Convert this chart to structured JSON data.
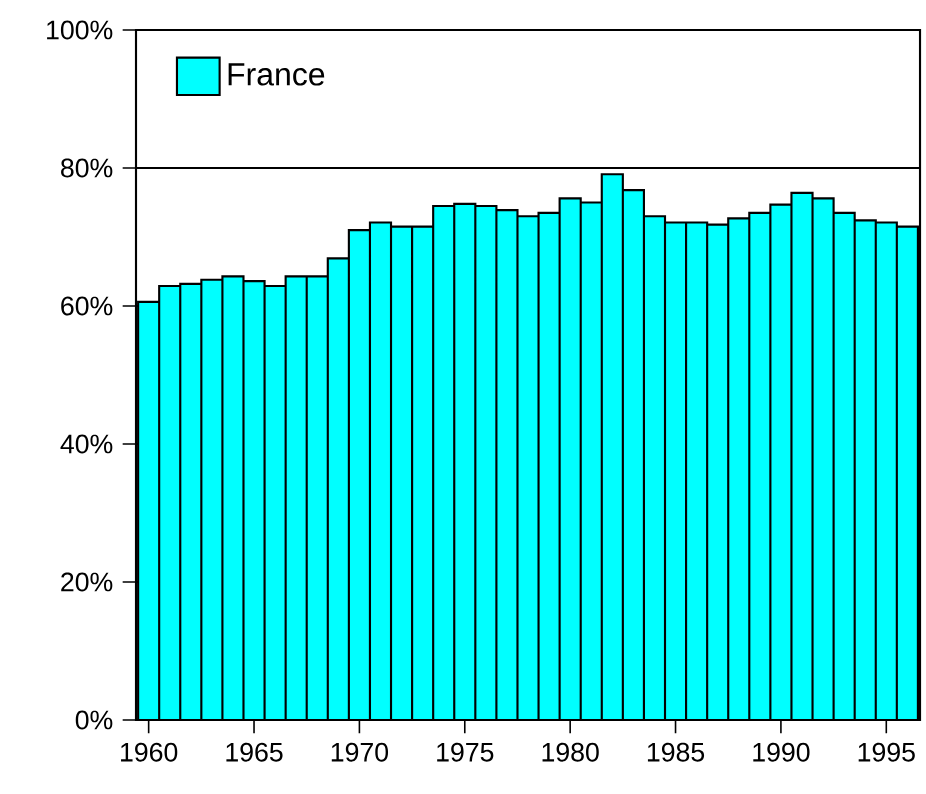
{
  "chart_data": {
    "type": "bar",
    "x": [
      1960,
      1961,
      1962,
      1963,
      1964,
      1965,
      1966,
      1967,
      1968,
      1969,
      1970,
      1971,
      1972,
      1973,
      1974,
      1975,
      1976,
      1977,
      1978,
      1979,
      1980,
      1981,
      1982,
      1983,
      1984,
      1985,
      1986,
      1987,
      1988,
      1989,
      1990,
      1991,
      1992,
      1993,
      1994,
      1995,
      1996
    ],
    "series": [
      {
        "name": "France",
        "color": "#00ffff",
        "values": [
          60.6,
          62.9,
          63.2,
          63.8,
          64.3,
          63.6,
          62.9,
          64.3,
          64.3,
          66.9,
          71.0,
          72.1,
          71.5,
          71.5,
          74.5,
          74.8,
          74.5,
          73.9,
          73.0,
          73.5,
          75.6,
          75.0,
          79.1,
          76.8,
          73.0,
          72.1,
          72.1,
          71.8,
          72.7,
          73.5,
          74.7,
          76.4,
          75.6,
          73.5,
          72.4,
          72.1,
          71.5
        ]
      }
    ],
    "xlim": [
      1959.4,
      1996.6
    ],
    "xticks": [
      1960,
      1965,
      1970,
      1975,
      1980,
      1985,
      1990,
      1995
    ],
    "ylim": [
      0,
      100
    ],
    "yticks": [
      {
        "value": 0,
        "label": "0%"
      },
      {
        "value": 20,
        "label": "20%"
      },
      {
        "value": 40,
        "label": "40%"
      },
      {
        "value": 60,
        "label": "60%"
      },
      {
        "value": 80,
        "label": "80%"
      },
      {
        "value": 100,
        "label": "100%"
      }
    ],
    "grid": "y",
    "legend": "top left"
  }
}
